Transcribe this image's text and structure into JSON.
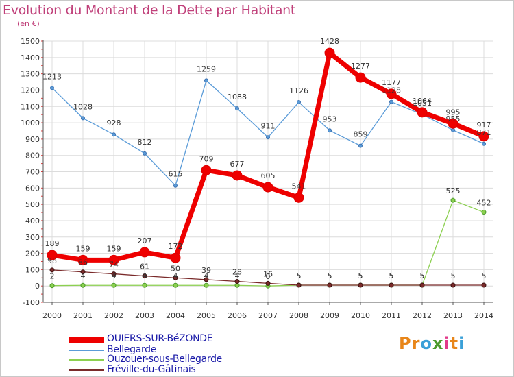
{
  "title": "Evolution du Montant de la Dette par Habitant",
  "unit_label": "(en €)",
  "logo": {
    "letters": [
      "P",
      "r",
      "o",
      "x",
      "i",
      "t",
      "i"
    ],
    "colors": [
      "#e8861a",
      "#e8861a",
      "#3aa0d8",
      "#4a9a2a",
      "#e23a8a",
      "#e8861a",
      "#3aa0d8"
    ]
  },
  "chart_data": {
    "type": "line",
    "x": [
      "2000",
      "2001",
      "2002",
      "2003",
      "2004",
      "2005",
      "2006",
      "2007",
      "2008",
      "2009",
      "2010",
      "2011",
      "2012",
      "2013",
      "2014"
    ],
    "y_ticks": [
      "-100",
      "0",
      "100",
      "200",
      "300",
      "400",
      "500",
      "600",
      "700",
      "800",
      "900",
      "1000",
      "1100",
      "1200",
      "1300",
      "1400",
      "1500"
    ],
    "ylim": [
      -100,
      1500
    ],
    "grid": true,
    "legend_position": "bottom-left",
    "series": [
      {
        "name": "OUIERS-SUR-BéZONDE",
        "color": "#ee0000",
        "values": [
          189,
          159,
          159,
          207,
          172,
          709,
          677,
          605,
          541,
          1428,
          1277,
          1177,
          1064,
          995,
          917
        ],
        "labels": [
          "189",
          "159",
          "159",
          "207",
          "172",
          "709",
          "677",
          "605",
          "541",
          "1428",
          "1277",
          "1177",
          "1064",
          "995",
          "917"
        ]
      },
      {
        "name": "Bellegarde",
        "color": "#5a9bd8",
        "values": [
          1213,
          1028,
          928,
          812,
          615,
          1259,
          1088,
          911,
          1126,
          953,
          859,
          1128,
          1051,
          955,
          871
        ],
        "labels": [
          "1213",
          "1028",
          "928",
          "812",
          "615",
          "1259",
          "1088",
          "911",
          "1126",
          "953",
          "859",
          "1128",
          "1051",
          "955",
          "871"
        ]
      },
      {
        "name": "Ouzouer-sous-Bellegarde",
        "color": "#8cd050",
        "values": [
          2,
          4,
          4,
          4,
          4,
          4,
          4,
          0,
          5,
          5,
          5,
          5,
          5,
          525,
          452
        ],
        "labels": [
          "2",
          "4",
          "4",
          "4",
          "4",
          "4",
          "4",
          "0",
          "5",
          "5",
          "5",
          "5",
          "5",
          "525",
          "452"
        ]
      },
      {
        "name": "Fréville-du-Gâtinais",
        "color": "#7a2a2a",
        "values": [
          98,
          86,
          74,
          61,
          50,
          39,
          28,
          16,
          5,
          5,
          5,
          5,
          5,
          5,
          5
        ],
        "labels": [
          "98",
          "86",
          "74",
          "61",
          "50",
          "39",
          "28",
          "16",
          "5",
          "5",
          "5",
          "5",
          "5",
          "5",
          "5"
        ]
      }
    ]
  }
}
